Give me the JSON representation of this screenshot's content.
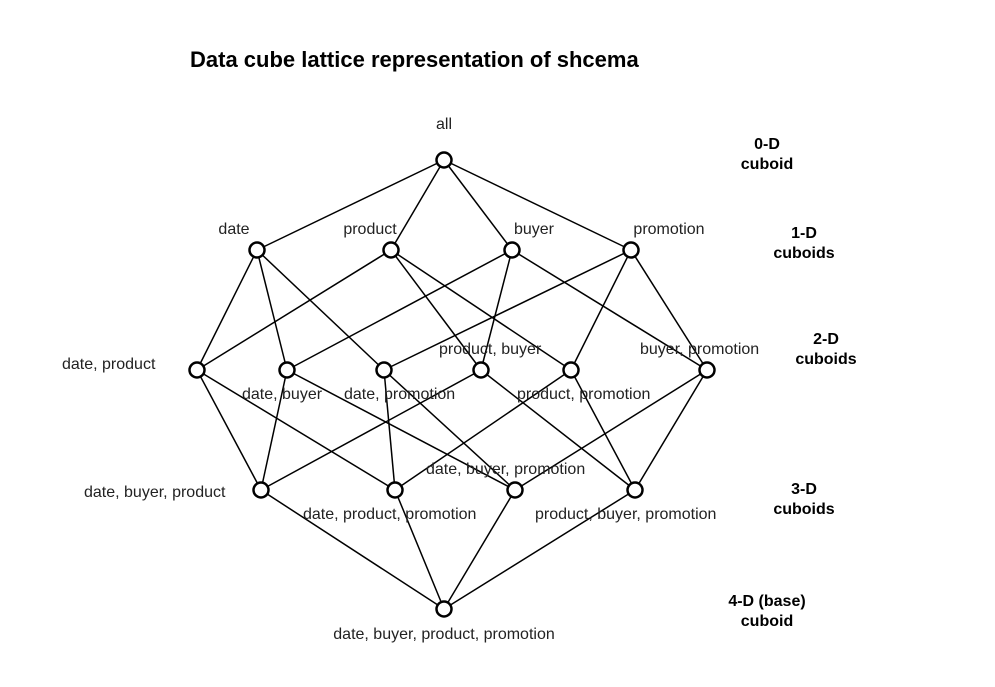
{
  "title": "Data cube lattice representation of shcema",
  "levels": [
    {
      "id": "0d",
      "lines": [
        "0-D",
        "cuboid"
      ]
    },
    {
      "id": "1d",
      "lines": [
        "1-D",
        "cuboids"
      ]
    },
    {
      "id": "2d",
      "lines": [
        "2-D",
        "cuboids"
      ]
    },
    {
      "id": "3d",
      "lines": [
        "3-D",
        "cuboids"
      ]
    },
    {
      "id": "4d",
      "lines": [
        "4-D (base)",
        "cuboid"
      ]
    }
  ],
  "nodes": [
    {
      "id": "all",
      "label": "all"
    },
    {
      "id": "date",
      "label": "date"
    },
    {
      "id": "product",
      "label": "product"
    },
    {
      "id": "buyer",
      "label": "buyer"
    },
    {
      "id": "promotion",
      "label": "promotion"
    },
    {
      "id": "date-product",
      "label": "date, product"
    },
    {
      "id": "date-buyer",
      "label": "date, buyer"
    },
    {
      "id": "date-promotion",
      "label": "date, promotion"
    },
    {
      "id": "product-buyer",
      "label": "product, buyer"
    },
    {
      "id": "product-promotion",
      "label": "product, promotion"
    },
    {
      "id": "buyer-promotion",
      "label": "buyer, promotion"
    },
    {
      "id": "date-buyer-product",
      "label": "date, buyer, product"
    },
    {
      "id": "date-product-promotion",
      "label": "date, product, promotion"
    },
    {
      "id": "date-buyer-promotion",
      "label": "date, buyer, promotion"
    },
    {
      "id": "product-buyer-promotion",
      "label": "product, buyer, promotion"
    },
    {
      "id": "date-buyer-product-promotion",
      "label": "date, buyer, product, promotion"
    }
  ],
  "edges": [
    [
      "all",
      "date"
    ],
    [
      "all",
      "product"
    ],
    [
      "all",
      "buyer"
    ],
    [
      "all",
      "promotion"
    ],
    [
      "date",
      "date-product"
    ],
    [
      "date",
      "date-buyer"
    ],
    [
      "date",
      "date-promotion"
    ],
    [
      "product",
      "date-product"
    ],
    [
      "product",
      "product-buyer"
    ],
    [
      "product",
      "product-promotion"
    ],
    [
      "buyer",
      "date-buyer"
    ],
    [
      "buyer",
      "product-buyer"
    ],
    [
      "buyer",
      "buyer-promotion"
    ],
    [
      "promotion",
      "date-promotion"
    ],
    [
      "promotion",
      "product-promotion"
    ],
    [
      "promotion",
      "buyer-promotion"
    ],
    [
      "date-product",
      "date-buyer-product"
    ],
    [
      "date-product",
      "date-product-promotion"
    ],
    [
      "date-buyer",
      "date-buyer-product"
    ],
    [
      "date-buyer",
      "date-buyer-promotion"
    ],
    [
      "date-promotion",
      "date-product-promotion"
    ],
    [
      "date-promotion",
      "date-buyer-promotion"
    ],
    [
      "product-buyer",
      "date-buyer-product"
    ],
    [
      "product-buyer",
      "product-buyer-promotion"
    ],
    [
      "product-promotion",
      "date-product-promotion"
    ],
    [
      "product-promotion",
      "product-buyer-promotion"
    ],
    [
      "buyer-promotion",
      "date-buyer-promotion"
    ],
    [
      "buyer-promotion",
      "product-buyer-promotion"
    ],
    [
      "date-buyer-product",
      "date-buyer-product-promotion"
    ],
    [
      "date-product-promotion",
      "date-buyer-product-promotion"
    ],
    [
      "date-buyer-promotion",
      "date-buyer-product-promotion"
    ],
    [
      "product-buyer-promotion",
      "date-buyer-product-promotion"
    ]
  ]
}
